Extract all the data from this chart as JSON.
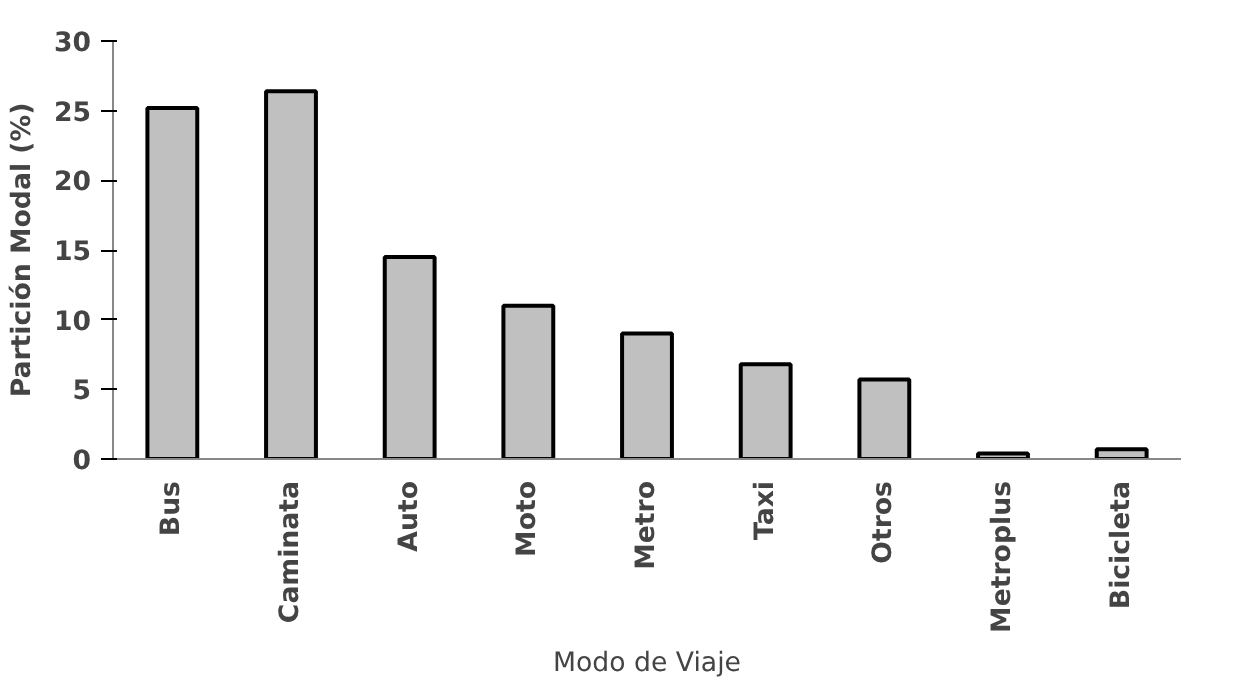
{
  "chart_data": {
    "type": "bar",
    "xlabel": "Modo de Viaje",
    "ylabel": "Partición Modal (%)",
    "categories": [
      "Bus",
      "Caminata",
      "Auto",
      "Moto",
      "Metro",
      "Taxi",
      "Otros",
      "Metroplus",
      "Bicicleta"
    ],
    "values": [
      25.2,
      26.4,
      14.5,
      11.0,
      9.0,
      6.8,
      5.7,
      0.4,
      0.7
    ],
    "color": "#c0c0c0",
    "ylim": [
      0,
      30
    ],
    "yticks": [
      0,
      5,
      10,
      15,
      20,
      25,
      30
    ],
    "grid": false
  }
}
